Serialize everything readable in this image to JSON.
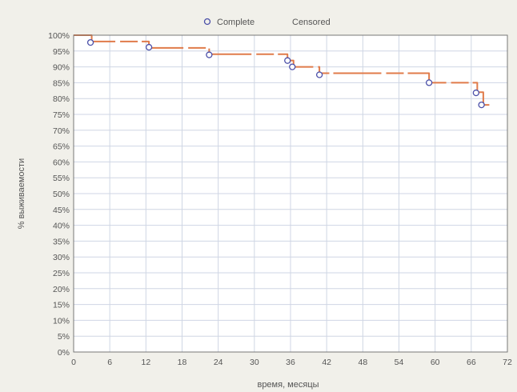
{
  "chart_data": {
    "type": "line",
    "title": "",
    "xlabel": "время, месяцы",
    "ylabel": "% выживаемости",
    "xlim": [
      0,
      72
    ],
    "ylim": [
      0,
      100
    ],
    "x_ticks": [
      0,
      6,
      12,
      18,
      24,
      30,
      36,
      42,
      48,
      54,
      60,
      66,
      72
    ],
    "y_ticks": [
      0,
      5,
      10,
      15,
      20,
      25,
      30,
      35,
      40,
      45,
      50,
      55,
      60,
      65,
      70,
      75,
      80,
      85,
      90,
      95,
      100
    ],
    "y_tick_suffix": "%",
    "grid": true,
    "legend_position": "top",
    "legend": [
      {
        "label": "Complete",
        "marker": "circle",
        "color": "#4a4fa8"
      },
      {
        "label": "Censored",
        "marker": "none",
        "color": "#e07b4a"
      }
    ],
    "survival_curve": {
      "x": [
        0,
        3,
        12.5,
        22.5,
        35.5,
        36.5,
        40.8,
        59,
        67,
        68
      ],
      "y": [
        100,
        98,
        96,
        94,
        92,
        90,
        88,
        85,
        82,
        78
      ],
      "end_x": 69,
      "color": "#e07b4a"
    },
    "complete_points": {
      "x": [
        2.8,
        12.5,
        22.5,
        35.5,
        36.3,
        40.8,
        59,
        66.8,
        67.7
      ],
      "y": [
        97.7,
        96.2,
        93.8,
        92,
        90,
        87.5,
        85,
        81.8,
        78
      ]
    }
  }
}
